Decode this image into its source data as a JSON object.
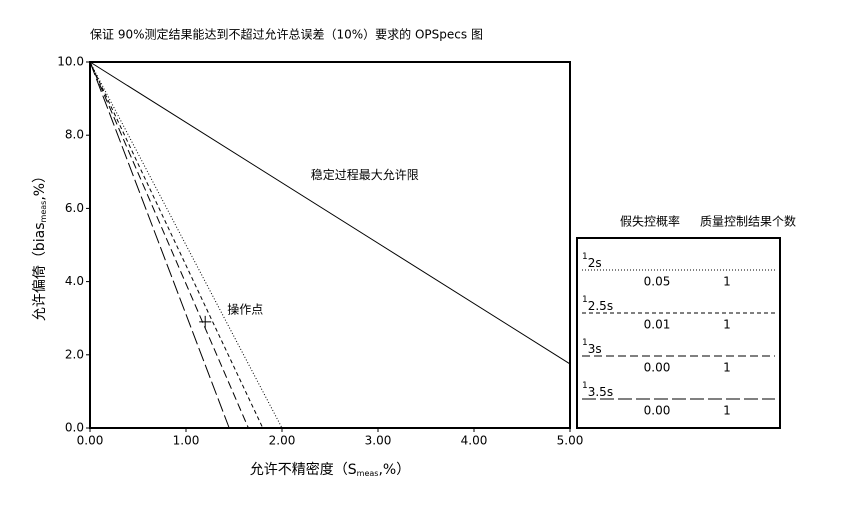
{
  "chart_data": {
    "type": "line",
    "title": "保证 90%测定结果能达到不超过允许总误差（10%）要求的 OPSpecs 图",
    "x_label": [
      "允许不精密度（S",
      "meas",
      ",%）"
    ],
    "y_label": [
      "允许偏倚（bias",
      "meas",
      ",%）"
    ],
    "xlim": [
      0,
      5
    ],
    "ylim": [
      0,
      10
    ],
    "xticks": [
      {
        "value": 0,
        "label": "0.00"
      },
      {
        "value": 1,
        "label": "1.00"
      },
      {
        "value": 2,
        "label": "2.00"
      },
      {
        "value": 3,
        "label": "3.00"
      },
      {
        "value": 4,
        "label": "4.00"
      },
      {
        "value": 5,
        "label": "5.00"
      }
    ],
    "yticks": [
      {
        "value": 0,
        "label": "0.0"
      },
      {
        "value": 2,
        "label": "2.0"
      },
      {
        "value": 4,
        "label": "4.0"
      },
      {
        "value": 6,
        "label": "6.0"
      },
      {
        "value": 8,
        "label": "8.0"
      },
      {
        "value": 10,
        "label": "10.0"
      }
    ],
    "stable_line": {
      "label": "稳定过程最大允许限",
      "x": [
        0,
        5
      ],
      "values": [
        10,
        1.75
      ],
      "color": "#000000"
    },
    "operating_point": {
      "label": "操作点",
      "x": 1.2,
      "y": 2.9
    },
    "legend_header": [
      "假失控概率",
      "质量控制结果个数"
    ],
    "series": [
      {
        "name": "1",
        "name_sub": "2s",
        "p_fr": "0.05",
        "n": "1",
        "color": "#000000",
        "dash": "1 2",
        "x": [
          0,
          2.0
        ],
        "values": [
          10,
          0
        ]
      },
      {
        "name": "1",
        "name_sub": "2.5s",
        "p_fr": "0.01",
        "n": "1",
        "color": "#000000",
        "dash": "4 3",
        "x": [
          0,
          1.8
        ],
        "values": [
          10,
          0
        ]
      },
      {
        "name": "1",
        "name_sub": "3s",
        "p_fr": "0.00",
        "n": "1",
        "color": "#000000",
        "dash": "8 4",
        "x": [
          0,
          1.65
        ],
        "values": [
          10,
          0
        ]
      },
      {
        "name": "1",
        "name_sub": "3.5s",
        "p_fr": "0.00",
        "n": "1",
        "color": "#000000",
        "dash": "14 4",
        "x": [
          0,
          1.45
        ],
        "values": [
          10,
          0
        ]
      }
    ]
  }
}
